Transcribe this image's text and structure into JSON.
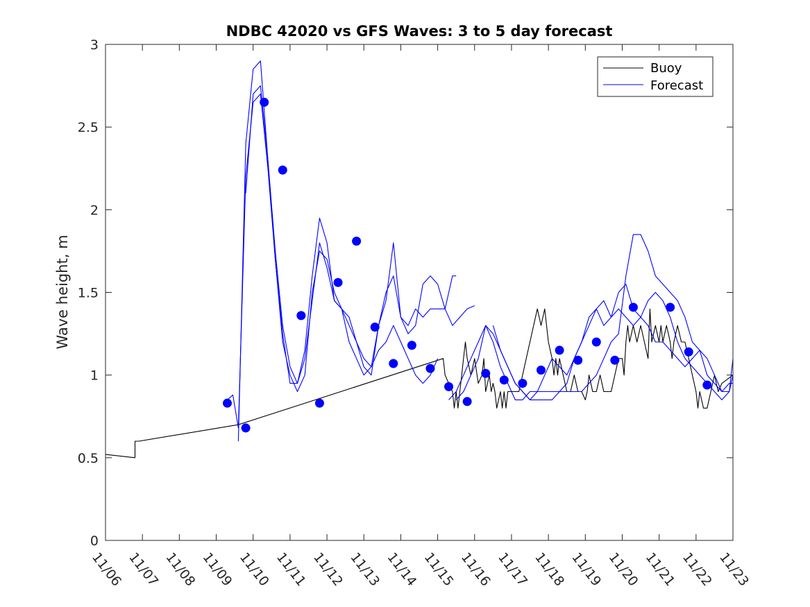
{
  "chart_data": {
    "type": "line",
    "title": "NDBC 42020 vs GFS Waves: 3 to 5 day forecast",
    "xlabel": "",
    "ylabel": "Wave height, m",
    "xlim": [
      0,
      17
    ],
    "ylim": [
      0,
      3
    ],
    "x_ticks": [
      0,
      1,
      2,
      3,
      4,
      5,
      6,
      7,
      8,
      9,
      10,
      11,
      12,
      13,
      14,
      15,
      16,
      17
    ],
    "x_tick_labels": [
      "11/06",
      "11/07",
      "11/08",
      "11/09",
      "11/10",
      "11/11",
      "11/12",
      "11/13",
      "11/14",
      "11/15",
      "11/16",
      "11/17",
      "11/18",
      "11/19",
      "11/20",
      "11/21",
      "11/22",
      "11/23"
    ],
    "y_ticks": [
      0,
      0.5,
      1,
      1.5,
      2,
      2.5,
      3
    ],
    "y_tick_labels": [
      "0",
      "0.5",
      "1",
      "1.5",
      "2",
      "2.5",
      "3"
    ],
    "legend": {
      "location": "top-right",
      "entries": [
        {
          "label": "Buoy",
          "color": "#000000"
        },
        {
          "label": "Forecast",
          "color": "#0000ff"
        }
      ]
    },
    "colors": {
      "buoy": "#000000",
      "forecast": "#0000ff",
      "marker": "#0000ff",
      "axis": "#262626"
    },
    "series": [
      {
        "name": "Buoy",
        "color": "#000000",
        "x": [
          0,
          0.8,
          0.8,
          0.9,
          3.6,
          9.15,
          9.2,
          9.4,
          9.45,
          9.5,
          9.55,
          9.6,
          9.65,
          9.7,
          9.75,
          9.8,
          9.9,
          10.0,
          10.1,
          10.2,
          10.25,
          10.3,
          10.35,
          10.4,
          10.45,
          10.5,
          10.55,
          10.6,
          10.7,
          10.75,
          10.8,
          10.85,
          10.9,
          10.95,
          11.0,
          11.05,
          11.1,
          11.2,
          11.3,
          11.4,
          11.5,
          11.6,
          11.7,
          11.8,
          11.9,
          12.0,
          12.1,
          12.15,
          12.2,
          12.25,
          12.3,
          12.4,
          12.5,
          12.6,
          12.7,
          12.8,
          12.9,
          13.0,
          13.05,
          13.1,
          13.2,
          13.3,
          13.4,
          13.5,
          13.6,
          13.7,
          13.8,
          13.9,
          14.0,
          14.05,
          14.1,
          14.15,
          14.2,
          14.3,
          14.4,
          14.5,
          14.6,
          14.7,
          14.75,
          14.8,
          14.9,
          15.0,
          15.05,
          15.1,
          15.2,
          15.3,
          15.35,
          15.4,
          15.5,
          15.6,
          15.7,
          15.8,
          15.9,
          16.0,
          16.05,
          16.1,
          16.2,
          16.3,
          16.4,
          16.5,
          16.6,
          16.7,
          17.0
        ],
        "y": [
          0.52,
          0.5,
          0.6,
          0.6,
          0.7,
          1.1,
          1.0,
          0.9,
          0.8,
          0.9,
          0.8,
          0.9,
          1.0,
          1.1,
          1.2,
          1.1,
          1.0,
          1.1,
          0.95,
          1.0,
          1.1,
          0.9,
          0.95,
          1.0,
          0.9,
          0.95,
          0.9,
          0.8,
          0.9,
          0.8,
          0.9,
          0.8,
          0.9,
          0.9,
          0.9,
          0.9,
          0.9,
          0.9,
          1.0,
          1.1,
          1.2,
          1.3,
          1.4,
          1.3,
          1.4,
          1.2,
          1.1,
          1.0,
          1.1,
          1.0,
          1.1,
          1.0,
          0.9,
          0.9,
          1.0,
          0.9,
          0.9,
          0.85,
          0.9,
          1.0,
          0.9,
          0.9,
          1.0,
          0.9,
          0.9,
          0.9,
          1.0,
          1.1,
          1.1,
          1.0,
          1.2,
          1.3,
          1.2,
          1.3,
          1.2,
          1.3,
          1.2,
          1.1,
          1.4,
          1.2,
          1.3,
          1.2,
          1.3,
          1.2,
          1.3,
          1.2,
          1.1,
          1.2,
          1.3,
          1.2,
          1.2,
          1.1,
          1.0,
          0.9,
          0.8,
          0.9,
          0.8,
          0.8,
          0.9,
          1.0,
          0.9,
          0.95,
          1.0
        ]
      },
      {
        "name": "Forecast 1",
        "color": "#0000ff",
        "x": [
          3.3,
          3.45,
          3.6,
          3.8,
          4.0,
          4.2,
          4.4,
          4.6,
          4.8,
          5.0,
          5.2,
          5.4,
          5.6,
          5.8,
          6.0,
          6.2,
          6.4,
          6.6,
          6.8,
          7.0,
          7.2,
          7.4,
          7.6,
          7.8,
          8.0,
          8.2,
          8.4,
          8.6,
          8.8,
          9.0
        ],
        "y": [
          0.85,
          0.88,
          0.68,
          2.2,
          2.65,
          2.7,
          2.25,
          1.7,
          1.2,
          1.0,
          0.9,
          1.0,
          1.5,
          1.75,
          1.7,
          1.5,
          1.4,
          1.35,
          1.2,
          1.1,
          1.05,
          1.15,
          1.2,
          1.3,
          1.2,
          1.1,
          1.0,
          0.95,
          1.0,
          1.1
        ]
      },
      {
        "name": "Forecast 2",
        "color": "#0000ff",
        "x": [
          3.6,
          3.8,
          4.0,
          4.2,
          4.4,
          4.6,
          4.8,
          5.0,
          5.2,
          5.4,
          5.6,
          5.8,
          6.0,
          6.2,
          6.4,
          6.6,
          6.8,
          7.0,
          7.2,
          7.4,
          7.6,
          7.8,
          8.0,
          8.2,
          8.4,
          8.6,
          8.8,
          9.0,
          9.2,
          9.4,
          9.5
        ],
        "y": [
          0.6,
          2.4,
          2.85,
          2.9,
          2.3,
          1.7,
          1.25,
          0.95,
          0.95,
          1.15,
          1.6,
          1.95,
          1.8,
          1.45,
          1.4,
          1.3,
          1.2,
          1.05,
          1.0,
          1.3,
          1.5,
          1.6,
          1.35,
          1.25,
          1.3,
          1.55,
          1.6,
          1.55,
          1.4,
          1.6,
          1.6
        ]
      },
      {
        "name": "Forecast 3",
        "color": "#0000ff",
        "x": [
          3.8,
          4.0,
          4.2,
          4.4,
          4.6,
          4.8,
          5.0,
          5.2,
          5.4,
          5.6,
          5.8,
          6.0,
          6.2,
          6.4,
          6.6,
          6.8,
          7.0,
          7.2,
          7.4,
          7.6,
          7.8,
          8.0,
          8.2,
          8.4,
          8.6,
          8.8,
          9.0,
          9.2,
          9.4,
          9.6,
          9.8,
          10.0
        ],
        "y": [
          2.1,
          2.7,
          2.75,
          2.3,
          1.75,
          1.3,
          1.05,
          0.95,
          1.1,
          1.45,
          1.8,
          1.65,
          1.45,
          1.4,
          1.2,
          1.1,
          1.0,
          1.05,
          1.3,
          1.45,
          1.8,
          1.35,
          1.3,
          1.4,
          1.35,
          1.4,
          1.4,
          1.4,
          1.3,
          1.35,
          1.4,
          1.42
        ]
      },
      {
        "name": "Forecast 4",
        "color": "#0000ff",
        "x": [
          9.3,
          9.5,
          9.7,
          9.9,
          10.1,
          10.3,
          10.5,
          10.7,
          10.9,
          11.1,
          11.3,
          11.5,
          11.7,
          11.9,
          12.1,
          12.3,
          12.5,
          12.7,
          12.9,
          13.1,
          13.3,
          13.5,
          13.7,
          13.9,
          14.1,
          14.3,
          14.5,
          14.7,
          14.9,
          15.1,
          15.3,
          15.5,
          15.7,
          15.9,
          16.1,
          16.3,
          16.5,
          16.7,
          16.9,
          17.0
        ],
        "y": [
          0.85,
          0.9,
          1.0,
          1.1,
          1.2,
          1.3,
          1.25,
          1.15,
          1.05,
          0.95,
          0.9,
          0.85,
          0.9,
          1.0,
          1.1,
          1.05,
          1.0,
          1.1,
          1.2,
          1.35,
          1.4,
          1.45,
          1.35,
          1.5,
          1.55,
          1.4,
          1.35,
          1.45,
          1.5,
          1.45,
          1.35,
          1.2,
          1.1,
          1.05,
          1.0,
          0.95,
          0.9,
          0.85,
          0.9,
          1.1
        ]
      },
      {
        "name": "Forecast 5",
        "color": "#0000ff",
        "x": [
          9.5,
          9.7,
          9.9,
          10.1,
          10.3,
          10.5,
          10.7,
          10.9,
          11.1,
          11.3,
          11.5,
          11.7,
          11.9,
          12.1,
          12.3,
          12.5,
          12.7,
          12.9,
          13.1,
          13.3,
          13.5,
          13.7,
          13.9,
          14.1,
          14.3,
          14.5,
          14.7,
          14.9,
          15.1,
          15.3,
          15.5,
          15.7,
          15.9,
          16.1,
          16.3,
          16.5,
          16.7,
          16.9,
          17.0
        ],
        "y": [
          0.85,
          0.9,
          1.0,
          1.1,
          1.3,
          1.2,
          1.05,
          0.95,
          0.85,
          0.85,
          0.9,
          0.9,
          0.9,
          0.9,
          0.9,
          0.95,
          1.1,
          1.2,
          1.3,
          1.4,
          1.3,
          1.35,
          1.4,
          1.35,
          1.3,
          1.35,
          1.3,
          1.2,
          1.2,
          1.15,
          1.1,
          1.05,
          1.1,
          1.15,
          1.0,
          0.95,
          0.9,
          0.95,
          0.95
        ]
      },
      {
        "name": "Forecast 6",
        "color": "#0000ff",
        "x": [
          10.5,
          10.7,
          10.9,
          11.1,
          11.3,
          11.5,
          11.7,
          11.9,
          12.1,
          12.3,
          12.5,
          12.7,
          12.9,
          13.1,
          13.3,
          13.5,
          13.7,
          13.9,
          14.1,
          14.3,
          14.5,
          14.7,
          14.9,
          15.1,
          15.3,
          15.5,
          15.7,
          15.9,
          16.1,
          16.3,
          16.5,
          16.7,
          16.9,
          17.0
        ],
        "y": [
          1.3,
          1.15,
          1.05,
          0.95,
          0.9,
          0.85,
          0.85,
          0.85,
          0.85,
          0.9,
          0.9,
          0.9,
          0.9,
          0.95,
          1.0,
          1.1,
          1.2,
          1.25,
          1.6,
          1.85,
          1.85,
          1.75,
          1.6,
          1.55,
          1.5,
          1.45,
          1.35,
          1.2,
          1.15,
          1.1,
          1.0,
          0.9,
          0.9,
          1.0
        ]
      }
    ],
    "markers": {
      "name": "Forecast points",
      "color": "#0000ff",
      "x": [
        3.3,
        3.8,
        4.3,
        4.8,
        5.3,
        5.8,
        6.3,
        6.8,
        7.3,
        7.8,
        8.3,
        8.8,
        9.3,
        9.8,
        10.3,
        10.8,
        11.3,
        11.8,
        12.3,
        12.8,
        13.3,
        13.8,
        14.3,
        14.8,
        15.3,
        15.8,
        16.3,
        16.8
      ],
      "y": [
        0.83,
        0.68,
        2.65,
        2.24,
        1.36,
        0.83,
        1.56,
        1.81,
        1.29,
        1.07,
        1.18,
        1.04,
        0.93,
        0.84,
        1.01,
        0.97,
        0.95,
        1.03,
        1.15,
        1.09,
        1.2,
        1.09,
        1.41,
        null,
        1.41,
        1.14,
        0.94,
        null
      ]
    }
  }
}
